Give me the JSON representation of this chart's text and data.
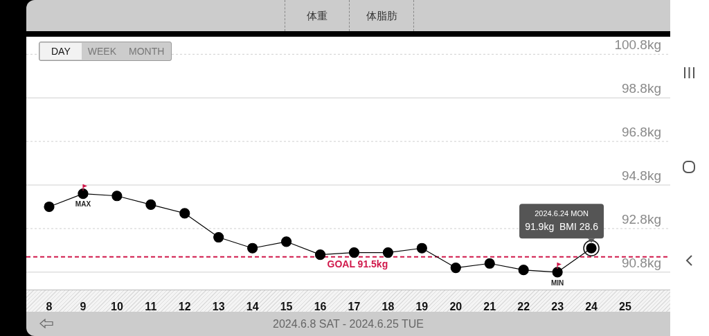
{
  "chart_data": {
    "type": "line",
    "title": "体重",
    "subtitle": "2024.6.8 SAT - 2024.6.25 TUE",
    "categories": [
      "8",
      "9",
      "10",
      "11",
      "12",
      "13",
      "14",
      "15",
      "16",
      "17",
      "18",
      "19",
      "20",
      "21",
      "22",
      "23",
      "24",
      "25"
    ],
    "series": [
      {
        "color": "#000000",
        "values": [
          93.8,
          94.4,
          94.3,
          93.9,
          93.5,
          92.4,
          91.9,
          92.2,
          91.6,
          91.7,
          91.7,
          91.9,
          91.0,
          91.2,
          90.9,
          90.8,
          91.9,
          null
        ]
      }
    ],
    "ylim": [
      90,
      101.6
    ],
    "yticks": [
      {
        "value": 90.8,
        "label": "90.8kg"
      },
      {
        "value": 92.8,
        "label": "92.8kg"
      },
      {
        "value": 94.8,
        "label": "94.8kg"
      },
      {
        "value": 96.8,
        "label": "96.8kg"
      },
      {
        "value": 98.8,
        "label": "98.8kg"
      },
      {
        "value": 100.8,
        "label": "100.8kg"
      }
    ],
    "grid": "y",
    "legend": false,
    "marker": "circle",
    "line_style": "solid",
    "ref_lines": [
      {
        "axis": "y",
        "value": 91.5,
        "label": "GOAL 91.5kg",
        "color": "#d0174a",
        "line_style": "dashed"
      }
    ],
    "annotations": [
      "体脂肪",
      "DAY",
      "WEEK",
      "MONTH",
      {
        "text": "MAX",
        "x": "9",
        "y": 94.4
      },
      {
        "text": "MIN",
        "x": "23",
        "y": 90.8
      },
      {
        "text": "2024.6.24 MON\n91.9kg  BMI 28.6",
        "x": "24",
        "y": 91.9
      }
    ]
  }
}
